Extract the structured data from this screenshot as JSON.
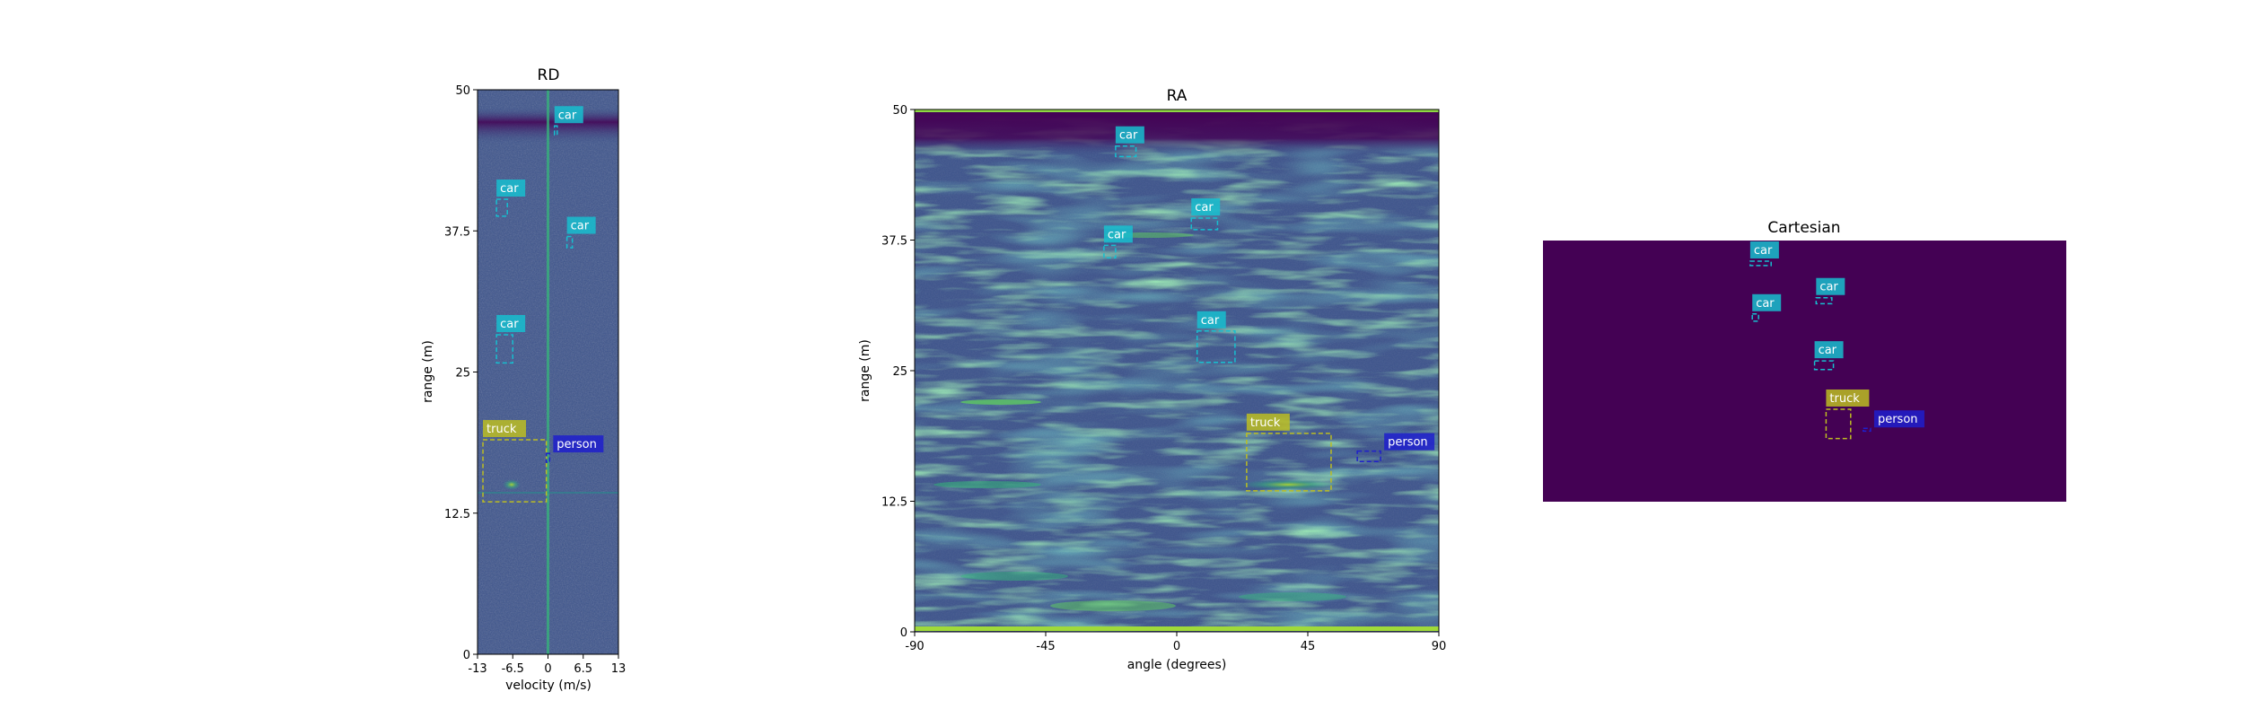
{
  "chart_data": [
    {
      "type": "heatmap",
      "title": "RD",
      "xlabel": "velocity (m/s)",
      "ylabel": "range (m)",
      "xlim": [
        -13,
        13
      ],
      "ylim": [
        0,
        50
      ],
      "xticks": [
        "-13",
        "-6.5",
        "0",
        "6.5",
        "13"
      ],
      "yticks": [
        "0",
        "12.5",
        "25",
        "37.5",
        "50"
      ],
      "colormap": "viridis",
      "annotations": [
        {
          "label": "car",
          "x": [
            1.2,
            1.7
          ],
          "y": [
            46.0,
            46.8
          ],
          "color": "#17becf"
        },
        {
          "label": "car",
          "x": [
            -9.5,
            -7.5
          ],
          "y": [
            38.8,
            40.3
          ],
          "color": "#17becf"
        },
        {
          "label": "car",
          "x": [
            3.5,
            4.5
          ],
          "y": [
            36.0,
            37.0
          ],
          "color": "#17becf"
        },
        {
          "label": "car",
          "x": [
            -9.5,
            -6.5
          ],
          "y": [
            25.8,
            28.3
          ],
          "color": "#17becf"
        },
        {
          "label": "truck",
          "x": [
            -12.0,
            -0.3
          ],
          "y": [
            13.5,
            19.0
          ],
          "color": "#bcbd22"
        },
        {
          "label": "person",
          "x": [
            -0.3,
            0.3
          ],
          "y": [
            17.0,
            17.8
          ],
          "color": "#1f1fcc"
        }
      ]
    },
    {
      "type": "heatmap",
      "title": "RA",
      "xlabel": "angle (degrees)",
      "ylabel": "range (m)",
      "xlim": [
        -90,
        90
      ],
      "ylim": [
        0,
        50
      ],
      "xticks": [
        "-90",
        "-45",
        "0",
        "45",
        "90"
      ],
      "yticks": [
        "0",
        "12.5",
        "25",
        "37.5",
        "50"
      ],
      "colormap": "viridis",
      "annotations": [
        {
          "label": "car",
          "x": [
            -21,
            -14
          ],
          "y": [
            45.5,
            46.5
          ],
          "color": "#17becf"
        },
        {
          "label": "car",
          "x": [
            5,
            14
          ],
          "y": [
            38.5,
            39.6
          ],
          "color": "#17becf"
        },
        {
          "label": "car",
          "x": [
            -25,
            -21
          ],
          "y": [
            35.8,
            37.0
          ],
          "color": "#17becf"
        },
        {
          "label": "car",
          "x": [
            7,
            20
          ],
          "y": [
            25.8,
            28.8
          ],
          "color": "#17becf"
        },
        {
          "label": "truck",
          "x": [
            24,
            53
          ],
          "y": [
            13.5,
            19.0
          ],
          "color": "#bcbd22"
        },
        {
          "label": "person",
          "x": [
            62,
            70
          ],
          "y": [
            16.3,
            17.3
          ],
          "color": "#1f1fcc"
        }
      ]
    },
    {
      "type": "heatmap",
      "title": "Cartesian",
      "colormap": "viridis",
      "axes_visible": false,
      "annotations": [
        {
          "label": "car",
          "x": [
            0.396,
            0.436
          ],
          "y": [
            0.904,
            0.921
          ],
          "color": "#17becf"
        },
        {
          "label": "car",
          "x": [
            0.522,
            0.552
          ],
          "y": [
            0.758,
            0.781
          ],
          "color": "#17becf"
        },
        {
          "label": "car",
          "x": [
            0.4,
            0.412
          ],
          "y": [
            0.691,
            0.719
          ],
          "color": "#17becf"
        },
        {
          "label": "car",
          "x": [
            0.519,
            0.555
          ],
          "y": [
            0.506,
            0.539
          ],
          "color": "#17becf"
        },
        {
          "label": "truck",
          "x": [
            0.541,
            0.588
          ],
          "y": [
            0.242,
            0.354
          ],
          "color": "#bcbd22"
        },
        {
          "label": "person",
          "x": [
            0.612,
            0.626
          ],
          "y": [
            0.27,
            0.281
          ],
          "color": "#1f1fcc"
        }
      ]
    }
  ]
}
